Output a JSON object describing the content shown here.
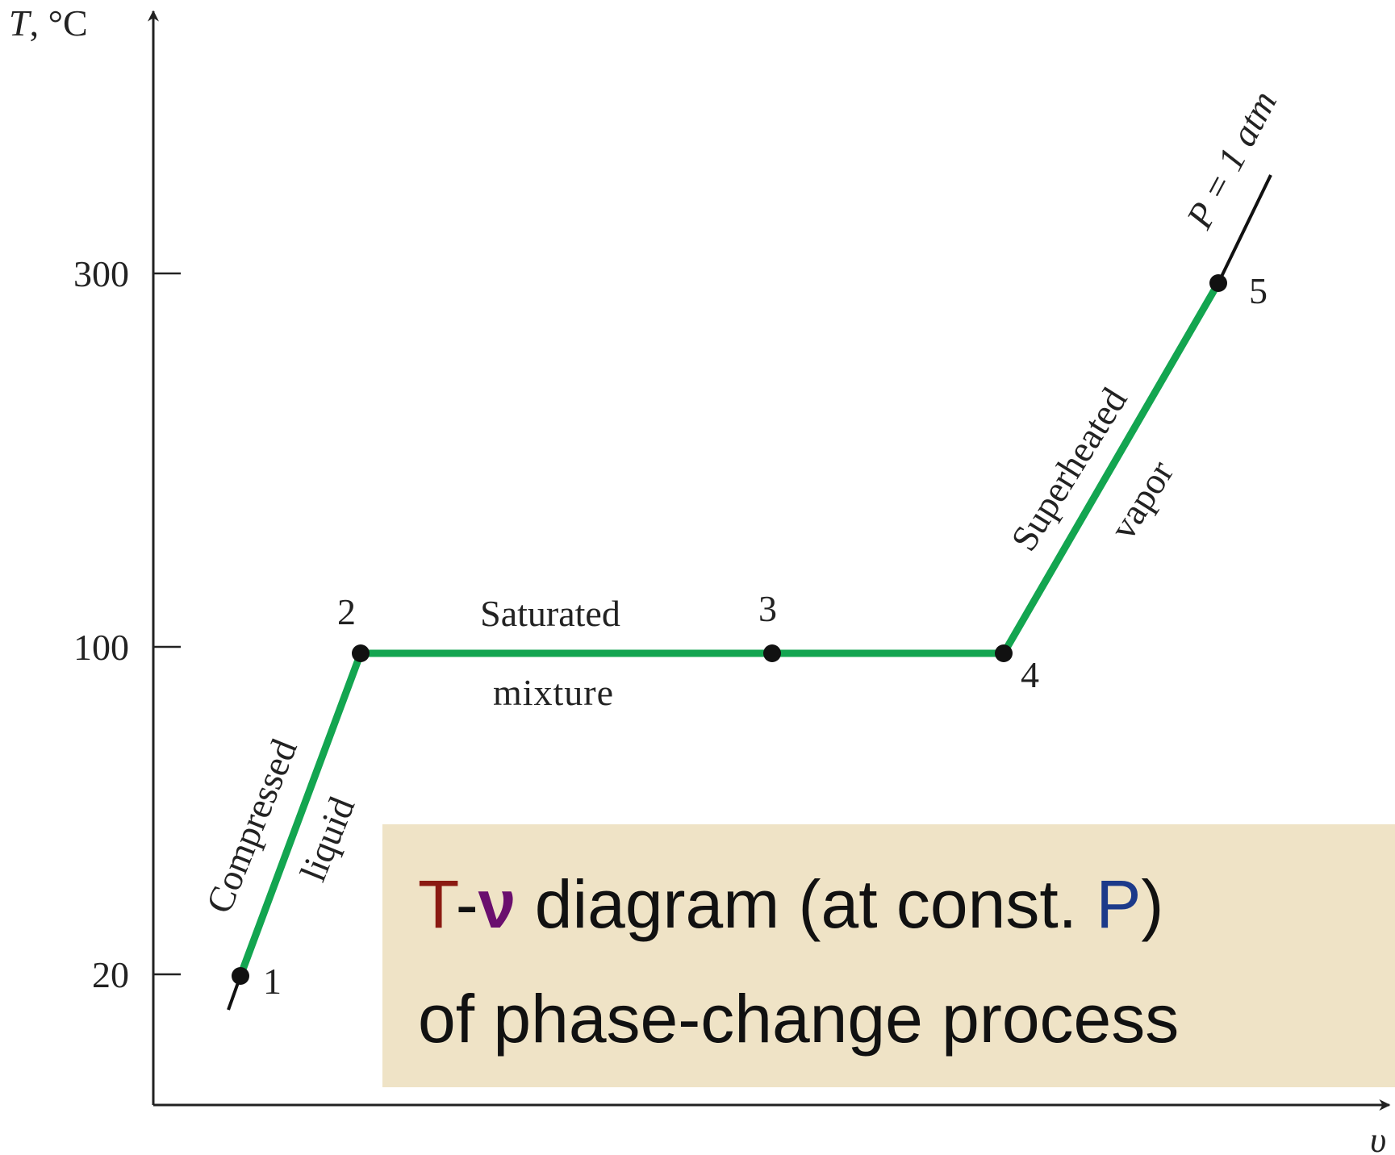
{
  "axes": {
    "y_label_var": "T",
    "y_label_unit": ", °C",
    "x_label": "υ",
    "y_ticks": [
      "300",
      "100",
      "20"
    ]
  },
  "states": [
    "1",
    "2",
    "3",
    "4",
    "5"
  ],
  "regions": {
    "compressed": [
      "Compressed",
      "liquid"
    ],
    "saturated": [
      "Saturated",
      "mixture"
    ],
    "superheated": [
      "Superheated",
      "vapor"
    ]
  },
  "isobar_label": "P = 1 atm",
  "caption": {
    "line1": [
      "T",
      "-",
      "ν",
      " diagram (at const. ",
      "P",
      ")"
    ],
    "line2": "of phase-change process"
  }
}
